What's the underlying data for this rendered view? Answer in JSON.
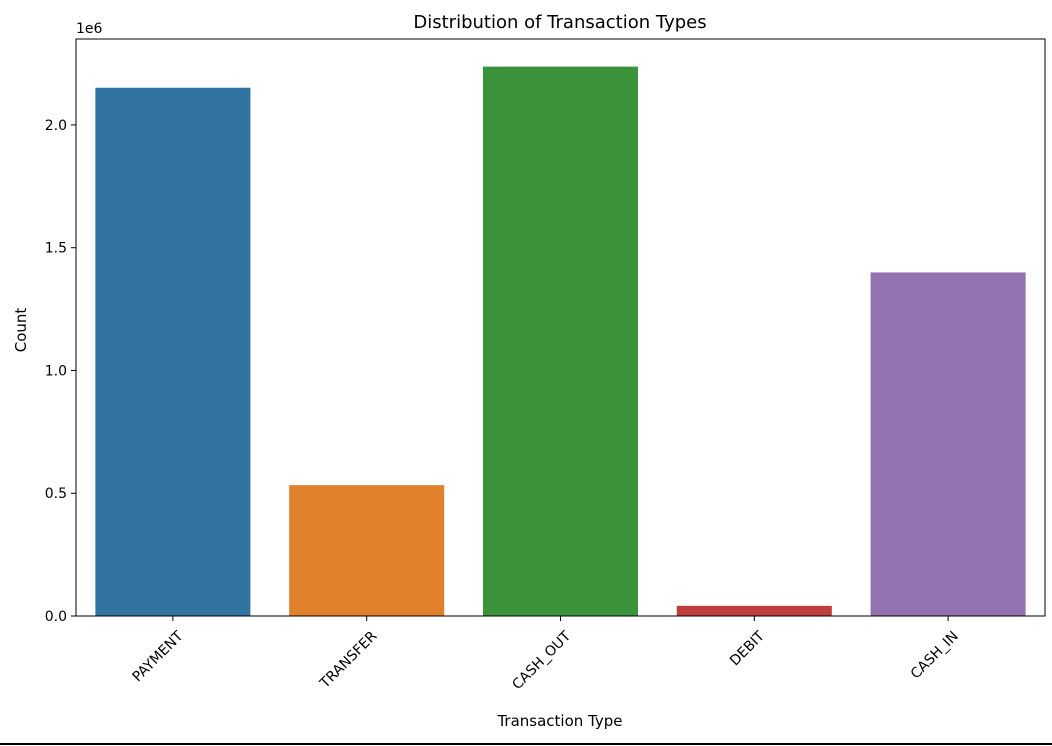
{
  "chart_data": {
    "type": "bar",
    "title": "Distribution of Transaction Types",
    "xlabel": "Transaction Type",
    "ylabel": "Count",
    "y_offset_label": "1e6",
    "categories": [
      "PAYMENT",
      "TRANSFER",
      "CASH_OUT",
      "DEBIT",
      "CASH_IN"
    ],
    "values": [
      2151495,
      532909,
      2237500,
      41432,
      1399284
    ],
    "colors": [
      "#3274a1",
      "#e1812c",
      "#3a923a",
      "#c03d3e",
      "#9372b2"
    ],
    "ylim": [
      0,
      2350000
    ],
    "y_ticks": [
      0,
      500000,
      1000000,
      1500000,
      2000000
    ],
    "y_tick_labels": [
      "0.0",
      "0.5",
      "1.0",
      "1.5",
      "2.0"
    ],
    "x_tick_rotation_deg": 45,
    "grid": false,
    "legend": "none"
  }
}
